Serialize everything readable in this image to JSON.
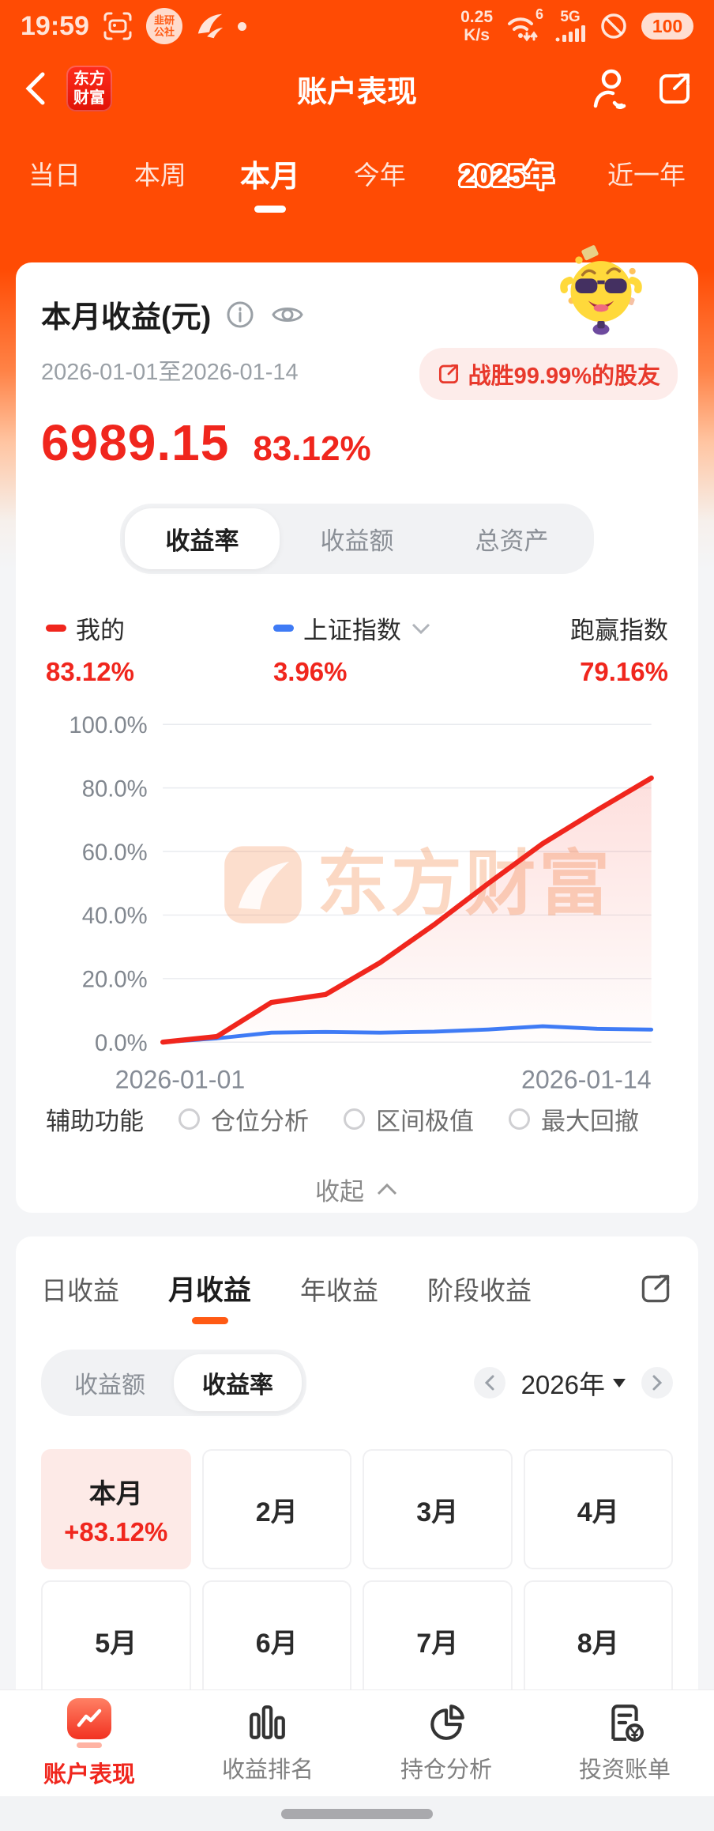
{
  "status_bar": {
    "time": "19:59",
    "community_badge_line1": "韭研",
    "community_badge_line2": "公社",
    "net_speed_value": "0.25",
    "net_speed_unit": "K/s",
    "wifi_generation": "6",
    "network_type": "5G",
    "battery_level": "100"
  },
  "header": {
    "logo_line1": "东方",
    "logo_line2": "财富",
    "title": "账户表现"
  },
  "period_tabs": [
    "当日",
    "本周",
    "本月",
    "今年",
    "2025年",
    "近一年"
  ],
  "summary_card": {
    "title": "本月收益(元)",
    "date_range": "2026-01-01至2026-01-14",
    "beat_badge_label": "战胜99.99%的股友",
    "profit_value": "6989.15",
    "profit_percent": "83.12%",
    "metric_tabs": [
      "收益率",
      "收益额",
      "总资产"
    ],
    "legend": {
      "mine_label": "我的",
      "mine_value": "83.12%",
      "index_label": "上证指数",
      "index_value": "3.96%",
      "outperform_label": "跑赢指数",
      "outperform_value": "79.16%"
    },
    "aux_label": "辅助功能",
    "aux_options": [
      "仓位分析",
      "区间极值",
      "最大回撤"
    ],
    "collapse_label": "收起"
  },
  "chart_data": {
    "type": "line",
    "x_labels": [
      "2026-01-01",
      "2026-01-14"
    ],
    "ylim": [
      0,
      100
    ],
    "y_ticks": [
      {
        "label": "100.0%",
        "value": 100
      },
      {
        "label": "80.0%",
        "value": 80
      },
      {
        "label": "60.0%",
        "value": 60
      },
      {
        "label": "40.0%",
        "value": 40
      },
      {
        "label": "20.0%",
        "value": 20
      },
      {
        "label": "0.0%",
        "value": 0
      }
    ],
    "grid": true,
    "legend_position": "top",
    "series": [
      {
        "name": "我的",
        "color": "#f0261d",
        "area_fill": true,
        "values": [
          0,
          1.8,
          12.5,
          15,
          25,
          37,
          50,
          62.5,
          73,
          83.12
        ]
      },
      {
        "name": "上证指数",
        "color": "#3f7bf5",
        "area_fill": false,
        "values": [
          0,
          1.2,
          3.0,
          3.2,
          3.0,
          3.3,
          4.0,
          5.0,
          4.2,
          3.96
        ]
      }
    ],
    "watermark": "东方财富"
  },
  "detail_card": {
    "tabs": [
      "日收益",
      "月收益",
      "年收益",
      "阶段收益"
    ],
    "mode_tabs": [
      "收益额",
      "收益率"
    ],
    "year_selector": "2026年",
    "months": [
      {
        "label": "本月",
        "value": "+83.12%",
        "highlight": true
      },
      {
        "label": "2月"
      },
      {
        "label": "3月"
      },
      {
        "label": "4月"
      },
      {
        "label": "5月"
      },
      {
        "label": "6月"
      },
      {
        "label": "7月"
      },
      {
        "label": "8月"
      }
    ]
  },
  "bottom_nav": [
    "账户表现",
    "收益排名",
    "持仓分析",
    "投资账单"
  ],
  "colors": {
    "brand_orange": "#ff4d05",
    "accent_red": "#f0261d",
    "index_blue": "#3f7bf5",
    "badge_pink": "#fdecea",
    "highlight_cell_pink": "#fdeae7"
  }
}
